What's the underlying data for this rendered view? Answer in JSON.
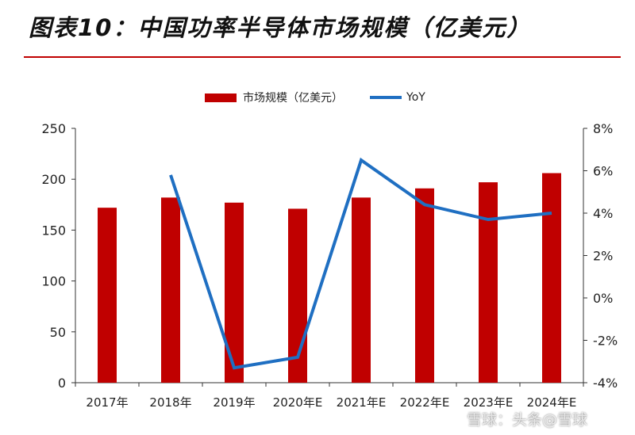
{
  "header": {
    "title": "图表10：中国功率半导体市场规模（亿美元）"
  },
  "colors": {
    "bar": "#c00000",
    "line": "#1f6fc2",
    "accent": "#c00000"
  },
  "chart_data": {
    "type": "bar+line",
    "categories": [
      "2017年",
      "2018年",
      "2019年",
      "2020年E",
      "2021年E",
      "2022年E",
      "2023年E",
      "2024年E"
    ],
    "series": [
      {
        "name": "市场规模（亿美元）",
        "type": "bar",
        "axis": "left",
        "values": [
          172,
          182,
          177,
          171,
          182,
          191,
          197,
          206
        ]
      },
      {
        "name": "YoY",
        "type": "line",
        "axis": "right",
        "values": [
          null,
          5.8,
          -3.3,
          -2.8,
          6.5,
          4.4,
          3.7,
          4.0
        ]
      }
    ],
    "y_left": {
      "min": 0,
      "max": 250,
      "ticks": [
        "0",
        "50",
        "100",
        "150",
        "200",
        "250"
      ]
    },
    "y_right": {
      "min": -4,
      "max": 8,
      "ticks": [
        "-4%",
        "-2%",
        "0%",
        "2%",
        "4%",
        "6%",
        "8%"
      ]
    },
    "legend_position": "top-center",
    "grid": false
  },
  "watermark": "雪球：头条@雪球"
}
